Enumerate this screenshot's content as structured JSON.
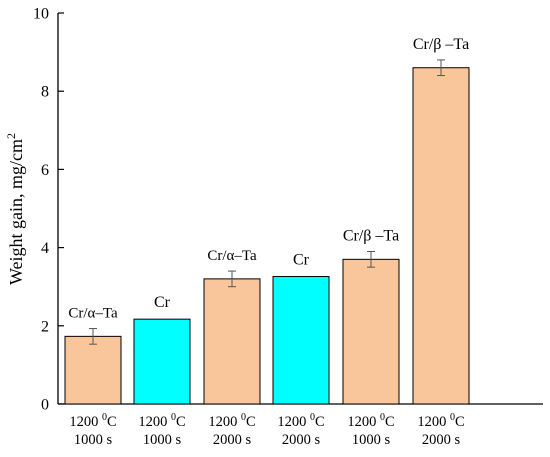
{
  "chart_data": {
    "type": "bar",
    "ylabel": "Weight gain, mg/cm",
    "ylabel_sup": "2",
    "ylim": [
      0,
      10
    ],
    "yticks": [
      "0",
      "2",
      "4",
      "6",
      "8",
      "10"
    ],
    "bars": [
      {
        "label": "Cr/α–Ta",
        "cat1": "1200 ",
        "cat_sup": "0",
        "cat1b": "C",
        "cat2": "1000 s",
        "value": 1.73,
        "error": 0.2,
        "color": "#F9C69B"
      },
      {
        "label": "Cr",
        "cat1": "1200 ",
        "cat_sup": "0",
        "cat1b": "C",
        "cat2": "1000 s",
        "value": 2.17,
        "error": null,
        "color": "#00FFFF"
      },
      {
        "label": "Cr/α–Ta",
        "cat1": "1200 ",
        "cat_sup": "0",
        "cat1b": "C",
        "cat2": "2000 s",
        "value": 3.2,
        "error": 0.2,
        "color": "#F9C69B"
      },
      {
        "label": "Cr",
        "cat1": "1200 ",
        "cat_sup": "0",
        "cat1b": "C",
        "cat2": "2000 s",
        "value": 3.26,
        "error": null,
        "color": "#00FFFF"
      },
      {
        "label": "Cr/β –Ta",
        "cat1": "1200 ",
        "cat_sup": "0",
        "cat1b": "C",
        "cat2": "1000 s",
        "value": 3.7,
        "error": 0.2,
        "color": "#F9C69B"
      },
      {
        "label": "Cr/β –Ta",
        "cat1": "1200 ",
        "cat_sup": "0",
        "cat1b": "C",
        "cat2": "2000 s",
        "value": 8.6,
        "error": 0.2,
        "color": "#F9C69B"
      }
    ]
  }
}
